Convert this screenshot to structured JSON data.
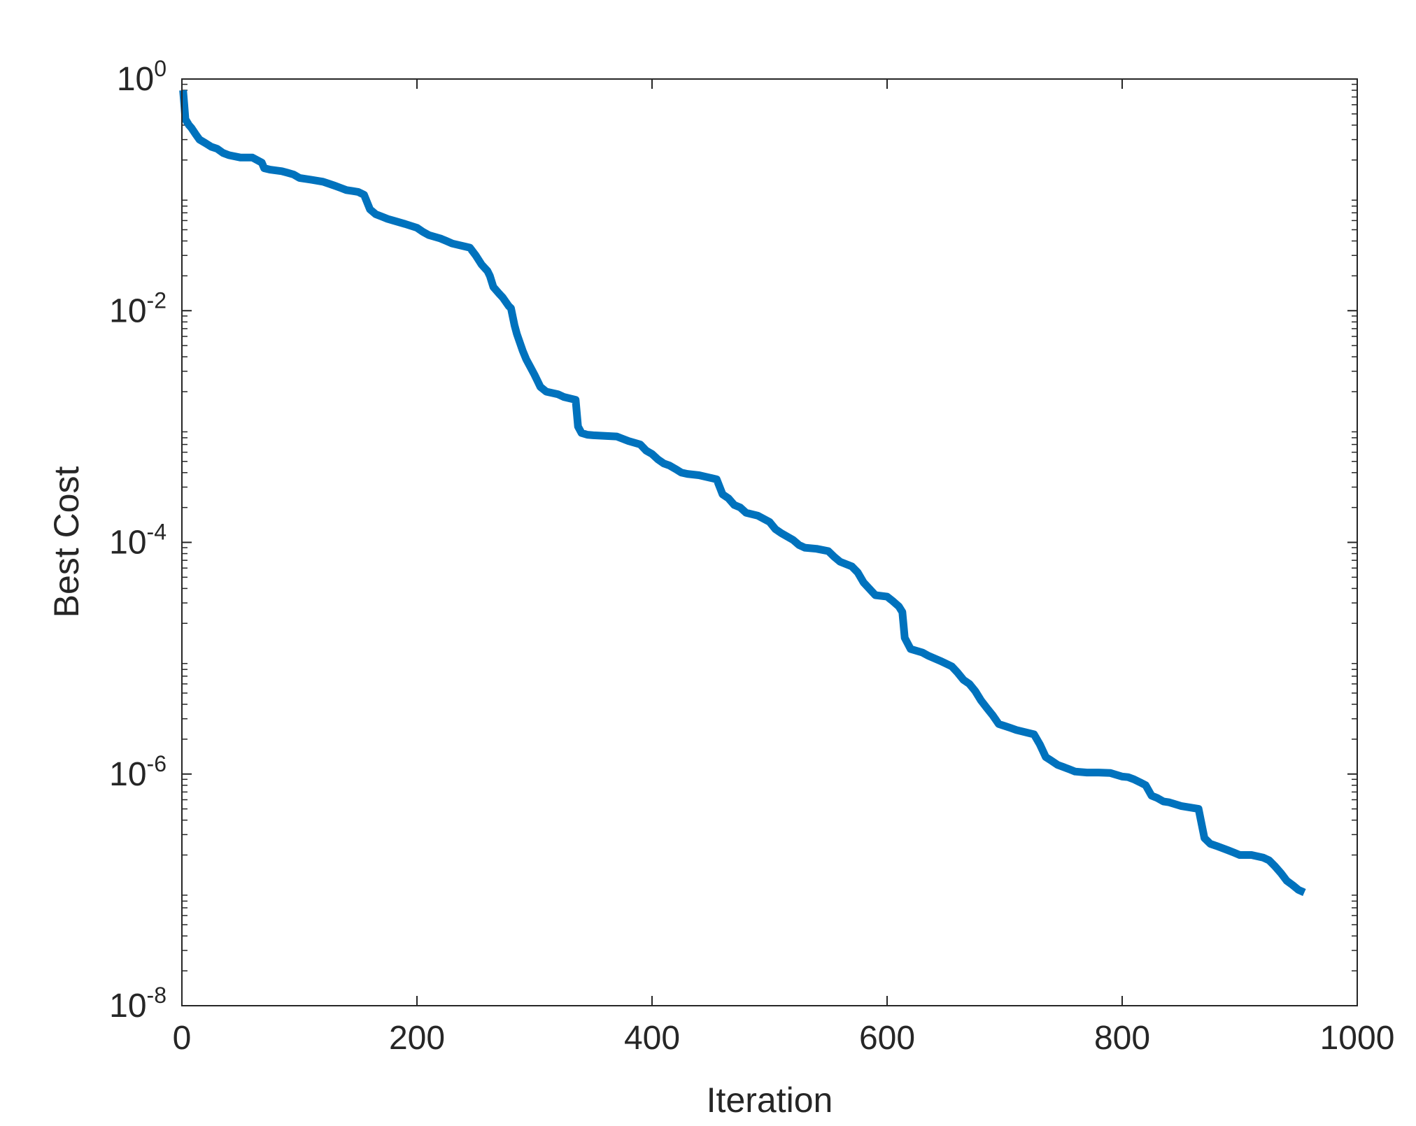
{
  "chart_data": {
    "type": "line",
    "xlabel": "Iteration",
    "ylabel": "Best Cost",
    "xlim": [
      0,
      1000
    ],
    "ylim": [
      1e-08,
      1
    ],
    "yscale": "log",
    "grid": false,
    "x_ticks": [
      0,
      200,
      400,
      600,
      800,
      1000
    ],
    "x_tick_labels": [
      "0",
      "200",
      "400",
      "600",
      "800",
      "1000"
    ],
    "y_ticks": [
      {
        "value": 1,
        "base": "10",
        "exp": "0"
      },
      {
        "value": 0.01,
        "base": "10",
        "exp": "-2"
      },
      {
        "value": 0.0001,
        "base": "10",
        "exp": "-4"
      },
      {
        "value": 1e-06,
        "base": "10",
        "exp": "-6"
      },
      {
        "value": 1e-08,
        "base": "10",
        "exp": "-8"
      }
    ],
    "line_color": "#0072BD",
    "series": [
      {
        "x": [
          1,
          2,
          3,
          6,
          8,
          12,
          15,
          20,
          25,
          30,
          35,
          40,
          50,
          60,
          68,
          70,
          75,
          85,
          90,
          95,
          100,
          110,
          120,
          125,
          130,
          135,
          140,
          145,
          150,
          155,
          160,
          165,
          170,
          175,
          180,
          190,
          200,
          205,
          210,
          220,
          225,
          230,
          240,
          245,
          250,
          255,
          260,
          262,
          265,
          270,
          273,
          278,
          280,
          283,
          285,
          290,
          293,
          300,
          305,
          310,
          320,
          325,
          335,
          337,
          340,
          345,
          350,
          360,
          370,
          380,
          390,
          395,
          400,
          405,
          410,
          415,
          420,
          425,
          430,
          440,
          450,
          455,
          460,
          465,
          470,
          475,
          480,
          490,
          500,
          505,
          510,
          520,
          525,
          530,
          540,
          550,
          555,
          560,
          570,
          575,
          580,
          590,
          600,
          605,
          610,
          613,
          615,
          620,
          630,
          635,
          645,
          650,
          655,
          660,
          665,
          670,
          675,
          680,
          685,
          690,
          695,
          700,
          705,
          710,
          725,
          730,
          735,
          740,
          745,
          750,
          755,
          760,
          770,
          780,
          790,
          800,
          805,
          810,
          815,
          820,
          825,
          830,
          835,
          840,
          850,
          855,
          865,
          870,
          875,
          880,
          890,
          895,
          900,
          910,
          920,
          925,
          930,
          935,
          940,
          945,
          950,
          955
        ],
        "y": [
          0.8,
          0.6,
          0.45,
          0.4,
          0.38,
          0.33,
          0.3,
          0.28,
          0.26,
          0.25,
          0.23,
          0.22,
          0.21,
          0.21,
          0.19,
          0.17,
          0.165,
          0.16,
          0.155,
          0.15,
          0.14,
          0.135,
          0.13,
          0.125,
          0.12,
          0.115,
          0.11,
          0.108,
          0.106,
          0.1,
          0.075,
          0.068,
          0.065,
          0.062,
          0.06,
          0.056,
          0.052,
          0.048,
          0.045,
          0.042,
          0.04,
          0.038,
          0.036,
          0.035,
          0.03,
          0.025,
          0.022,
          0.02,
          0.016,
          0.014,
          0.013,
          0.011,
          0.0105,
          0.0075,
          0.0063,
          0.0045,
          0.0038,
          0.0028,
          0.0022,
          0.002,
          0.0019,
          0.0018,
          0.0017,
          0.001,
          0.00088,
          0.00085,
          0.00084,
          0.00083,
          0.00082,
          0.00075,
          0.0007,
          0.00062,
          0.00058,
          0.00052,
          0.00048,
          0.00046,
          0.00043,
          0.0004,
          0.00039,
          0.00038,
          0.00036,
          0.00035,
          0.00026,
          0.00024,
          0.00021,
          0.0002,
          0.00018,
          0.00017,
          0.00015,
          0.00013,
          0.00012,
          0.000105,
          9.5e-05,
          9e-05,
          8.8e-05,
          8.4e-05,
          7.5e-05,
          6.8e-05,
          6.2e-05,
          5.5e-05,
          4.5e-05,
          3.5e-05,
          3.4e-05,
          3.1e-05,
          2.8e-05,
          2.5e-05,
          1.5e-05,
          1.2e-05,
          1.12e-05,
          1.05e-05,
          9.5e-06,
          9e-06,
          8.5e-06,
          7.5e-06,
          6.5e-06,
          6e-06,
          5.2e-06,
          4.3e-06,
          3.7e-06,
          3.2e-06,
          2.7e-06,
          2.6e-06,
          2.5e-06,
          2.4e-06,
          2.2e-06,
          1.8e-06,
          1.4e-06,
          1.3e-06,
          1.2e-06,
          1.15e-06,
          1.1e-06,
          1.05e-06,
          1.03e-06,
          1.03e-06,
          1.02e-06,
          9.5e-07,
          9.4e-07,
          9e-07,
          8.5e-07,
          8e-07,
          6.5e-07,
          6.2e-07,
          5.8e-07,
          5.7e-07,
          5.3e-07,
          5.2e-07,
          5e-07,
          2.8e-07,
          2.5e-07,
          2.4e-07,
          2.2e-07,
          2.1e-07,
          2e-07,
          2e-07,
          1.9e-07,
          1.8e-07,
          1.6e-07,
          1.4e-07,
          1.2e-07,
          1.1e-07,
          1e-07,
          9.5e-08
        ]
      }
    ]
  }
}
